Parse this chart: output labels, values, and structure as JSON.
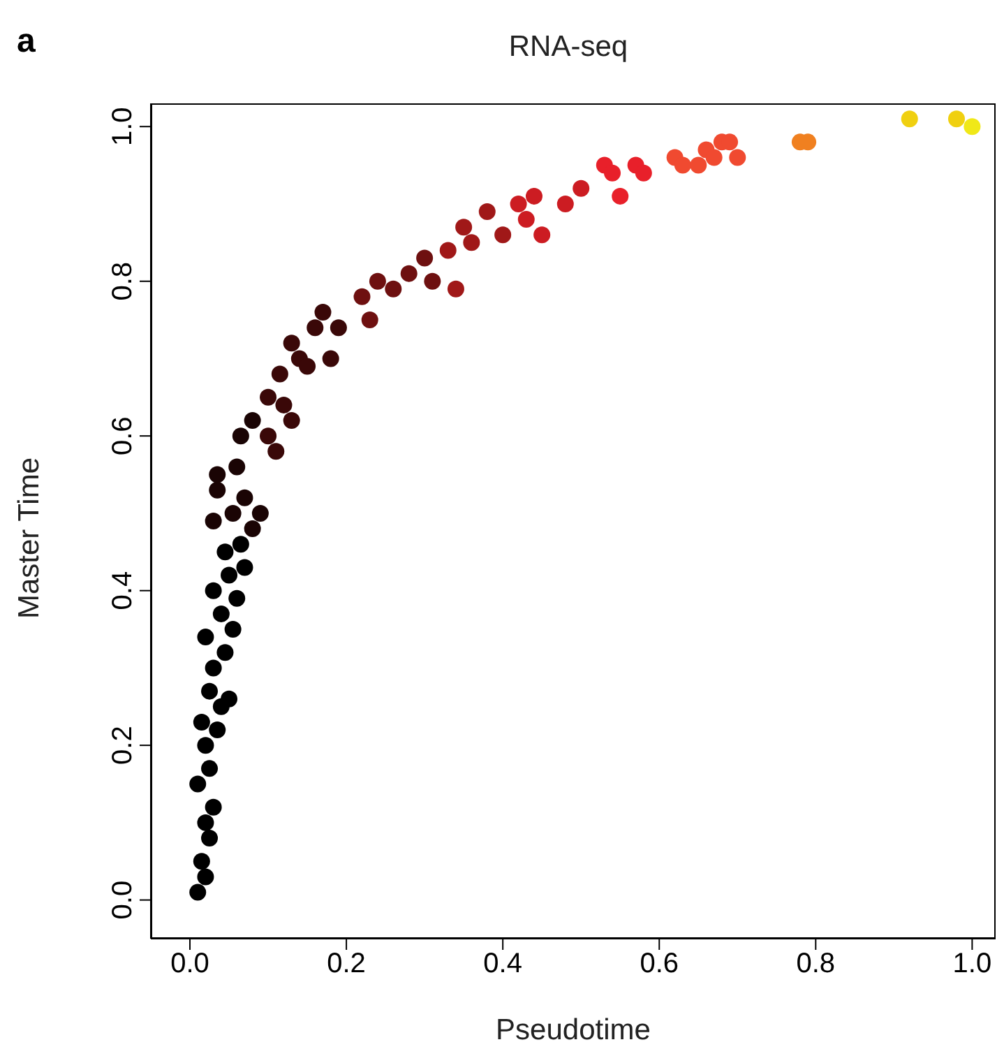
{
  "chart_data": {
    "type": "scatter",
    "title": "RNA-seq",
    "xlabel": "Pseudotime",
    "ylabel": "Master Time",
    "annotations": [
      "a"
    ],
    "marker": "circle",
    "grid": false,
    "xlim": [
      -0.05,
      1.03
    ],
    "ylim": [
      -0.05,
      1.03
    ],
    "xticks": [
      {
        "value": 0,
        "label": "0.0"
      },
      {
        "value": 0.2,
        "label": "0.2"
      },
      {
        "value": 0.4,
        "label": "0.4"
      },
      {
        "value": 0.6,
        "label": "0.6"
      },
      {
        "value": 0.8,
        "label": "0.8"
      },
      {
        "value": 1,
        "label": "1.0"
      }
    ],
    "yticks": [
      {
        "value": 0,
        "label": "0.0"
      },
      {
        "value": 0.2,
        "label": "0.2"
      },
      {
        "value": 0.4,
        "label": "0.4"
      },
      {
        "value": 0.6,
        "label": "0.6"
      },
      {
        "value": 0.8,
        "label": "0.8"
      },
      {
        "value": 1,
        "label": "1.0"
      }
    ],
    "x": [
      0.01,
      0.02,
      0.015,
      0.025,
      0.02,
      0.03,
      0.01,
      0.025,
      0.02,
      0.035,
      0.015,
      0.04,
      0.025,
      0.05,
      0.03,
      0.045,
      0.02,
      0.055,
      0.04,
      0.06,
      0.03,
      0.05,
      0.07,
      0.045,
      0.065,
      0.03,
      0.08,
      0.055,
      0.09,
      0.035,
      0.035,
      0.07,
      0.06,
      0.065,
      0.08,
      0.1,
      0.11,
      0.1,
      0.12,
      0.13,
      0.115,
      0.14,
      0.13,
      0.15,
      0.16,
      0.18,
      0.17,
      0.19,
      0.22,
      0.23,
      0.24,
      0.26,
      0.28,
      0.3,
      0.31,
      0.33,
      0.35,
      0.34,
      0.36,
      0.38,
      0.4,
      0.42,
      0.43,
      0.44,
      0.45,
      0.48,
      0.5,
      0.53,
      0.54,
      0.55,
      0.57,
      0.58,
      0.62,
      0.63,
      0.65,
      0.66,
      0.67,
      0.68,
      0.69,
      0.7,
      0.78,
      0.79,
      0.92,
      0.98,
      1.0
    ],
    "values": [
      0.01,
      0.03,
      0.05,
      0.08,
      0.1,
      0.12,
      0.15,
      0.17,
      0.2,
      0.22,
      0.23,
      0.25,
      0.27,
      0.26,
      0.3,
      0.32,
      0.34,
      0.35,
      0.37,
      0.39,
      0.4,
      0.42,
      0.43,
      0.45,
      0.46,
      0.49,
      0.48,
      0.5,
      0.5,
      0.53,
      0.55,
      0.52,
      0.56,
      0.6,
      0.62,
      0.6,
      0.58,
      0.65,
      0.64,
      0.62,
      0.68,
      0.7,
      0.72,
      0.69,
      0.74,
      0.7,
      0.76,
      0.74,
      0.78,
      0.75,
      0.8,
      0.79,
      0.81,
      0.83,
      0.8,
      0.84,
      0.87,
      0.79,
      0.85,
      0.89,
      0.86,
      0.9,
      0.88,
      0.91,
      0.86,
      0.9,
      0.92,
      0.95,
      0.94,
      0.91,
      0.95,
      0.94,
      0.96,
      0.95,
      0.95,
      0.97,
      0.96,
      0.98,
      0.98,
      0.96,
      0.98,
      0.98,
      1.01,
      1.01,
      1.0
    ],
    "colors": [
      "#000000",
      "#000000",
      "#000000",
      "#000000",
      "#000000",
      "#000000",
      "#000000",
      "#000000",
      "#000000",
      "#000000",
      "#000000",
      "#000000",
      "#000000",
      "#000000",
      "#000000",
      "#000000",
      "#000000",
      "#000000",
      "#000000",
      "#000000",
      "#000000",
      "#000000",
      "#000000",
      "#000000",
      "#000000",
      "#1a0404",
      "#1a0404",
      "#1a0404",
      "#1a0404",
      "#1a0404",
      "#1a0404",
      "#1a0404",
      "#1a0404",
      "#1a0404",
      "#1a0404",
      "#3a0808",
      "#3a0808",
      "#3a0808",
      "#3a0808",
      "#3a0808",
      "#3a0808",
      "#3a0808",
      "#3a0808",
      "#3a0808",
      "#3a0808",
      "#3a0808",
      "#3a0808",
      "#3a0808",
      "#6e1010",
      "#6e1010",
      "#6e1010",
      "#6e1010",
      "#6e1010",
      "#6e1010",
      "#6e1010",
      "#a01818",
      "#a01818",
      "#a01818",
      "#a01818",
      "#a01818",
      "#a01818",
      "#cc1c22",
      "#cc1c22",
      "#cc1c22",
      "#cc1c22",
      "#cc1c22",
      "#cc1c22",
      "#e8202a",
      "#e8202a",
      "#e8202a",
      "#e8202a",
      "#e8202a",
      "#f04a30",
      "#f04a30",
      "#f04a30",
      "#f04a30",
      "#f04a30",
      "#f04a30",
      "#f04a30",
      "#f04a30",
      "#f08020",
      "#f08020",
      "#f0d010",
      "#f0d010",
      "#f0e818"
    ]
  }
}
